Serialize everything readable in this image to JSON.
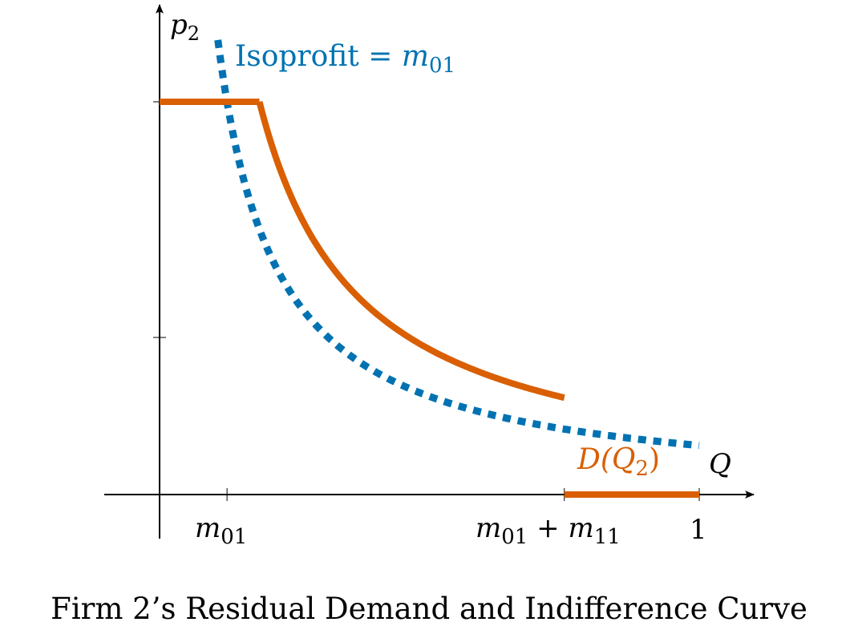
{
  "colors": {
    "axis": "#000000",
    "demand": "#d95f02",
    "isoprofit": "#0072b2",
    "caption": "#000000"
  },
  "labels": {
    "y_axis_p": "p",
    "y_axis_sub": "2",
    "x_axis": "Q",
    "isoprofit_word": "Isoprofit = ",
    "isoprofit_m": "m",
    "isoprofit_sub": "01",
    "demand_D": "D(Q",
    "demand_sub": "2",
    "demand_close": ")",
    "tick_m01_m": "m",
    "tick_m01_sub": "01",
    "tick_sum_m1": "m",
    "tick_sum_sub1": "01",
    "tick_sum_plus": " + m",
    "tick_sum_sub2": "11",
    "tick_one": "1",
    "caption": "Firm 2’s Residual Demand and Indifference Curve"
  },
  "chart_data": {
    "type": "line",
    "title": "Firm 2’s Residual Demand and Indifference Curve",
    "xlabel": "Q",
    "ylabel": "p2",
    "xlim": [
      -0.103,
      1.1
    ],
    "ylim": [
      0,
      1.45
    ],
    "m01": 0.125,
    "m11": 0.625,
    "x_ticks": [
      {
        "value": 0.125,
        "label": "m01"
      },
      {
        "value": 0.75,
        "label": "m01 + m11"
      },
      {
        "value": 1,
        "label": "1"
      }
    ],
    "y_ticks": [
      0.4,
      1.0
    ],
    "series": [
      {
        "name": "D(Q2)",
        "style": "solid",
        "segments": [
          [
            [
              0,
              1.0
            ],
            [
              0.185,
              1.0
            ]
          ],
          [
            [
              0.185,
              1.0
            ],
            [
              0.75,
              0.215
            ]
          ],
          [
            [
              0.75,
              0
            ],
            [
              1.0,
              0
            ]
          ]
        ],
        "curve_formula": "p = 0.185 / Q on [0.185, 0.75] (approx)"
      },
      {
        "name": "Isoprofit = m01",
        "style": "dotted",
        "curve_formula": "p = 0.125 / Q",
        "x_range": [
          0.108,
          1.0
        ]
      }
    ]
  }
}
